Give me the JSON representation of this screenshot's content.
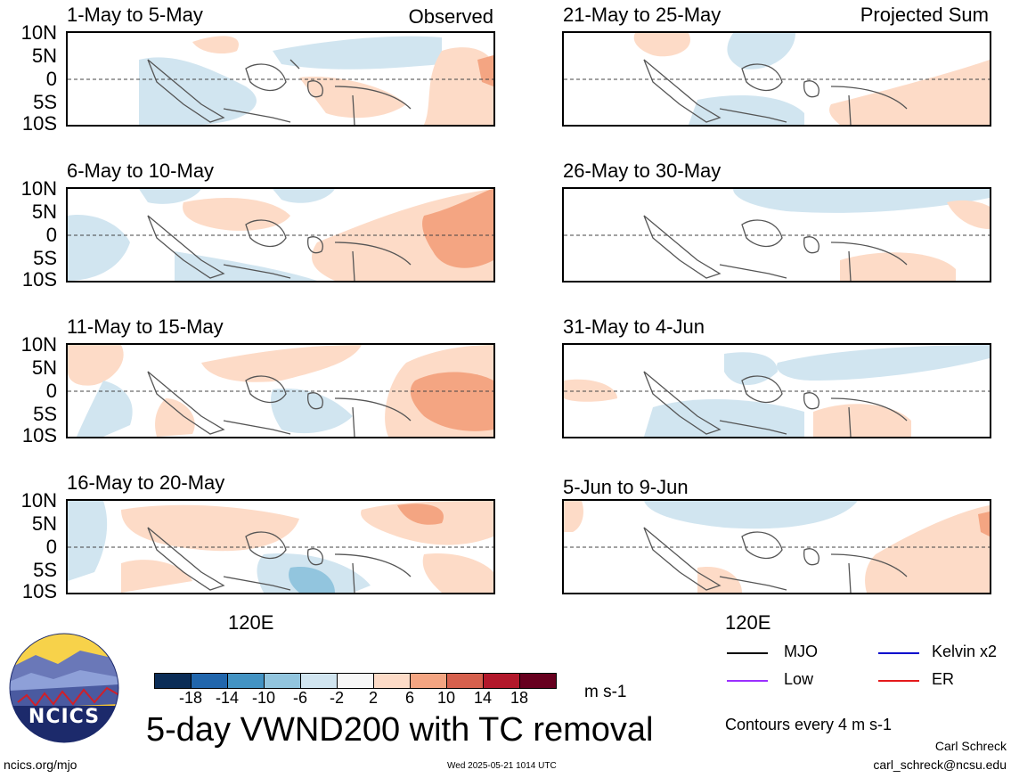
{
  "header": {
    "observed_label": "Observed",
    "projected_label": "Projected Sum"
  },
  "panels_left": [
    {
      "title": "1-May to 5-May"
    },
    {
      "title": "6-May to 10-May"
    },
    {
      "title": "11-May to 15-May"
    },
    {
      "title": "16-May to 20-May"
    }
  ],
  "panels_right": [
    {
      "title": "21-May to 25-May"
    },
    {
      "title": "26-May to 30-May"
    },
    {
      "title": "31-May to 4-Jun"
    },
    {
      "title": "5-Jun to 9-Jun"
    }
  ],
  "lat_labels": [
    "10N",
    "5N",
    "0",
    "5S",
    "10S"
  ],
  "lon_label": "120E",
  "colorbar": {
    "ticks": [
      "-18",
      "-14",
      "-10",
      "-6",
      "-2",
      "2",
      "6",
      "10",
      "14",
      "18"
    ],
    "units": "m s-1",
    "colors": [
      "#0b2d57",
      "#2166ac",
      "#4393c3",
      "#92c5de",
      "#d1e5f0",
      "#f7f7f7",
      "#fddbc7",
      "#f4a582",
      "#d6604d",
      "#b2182b",
      "#67001f"
    ]
  },
  "legend": {
    "items": [
      {
        "label": "MJO",
        "color": "#000000"
      },
      {
        "label": "Kelvin x2",
        "color": "#0000cc"
      },
      {
        "label": "Low",
        "color": "#9b30ff"
      },
      {
        "label": "ER",
        "color": "#e41a1c"
      }
    ],
    "contour_note": "Contours every 4 m s-1"
  },
  "main_title": "5-day VWND200 with TC removal",
  "logo_text": "NCICS",
  "footer": {
    "url": "ncics.org/mjo",
    "timestamp": "Wed 2025-05-21 1014 UTC",
    "author": "Carl Schreck",
    "email": "carl_schreck@ncsu.edu"
  }
}
